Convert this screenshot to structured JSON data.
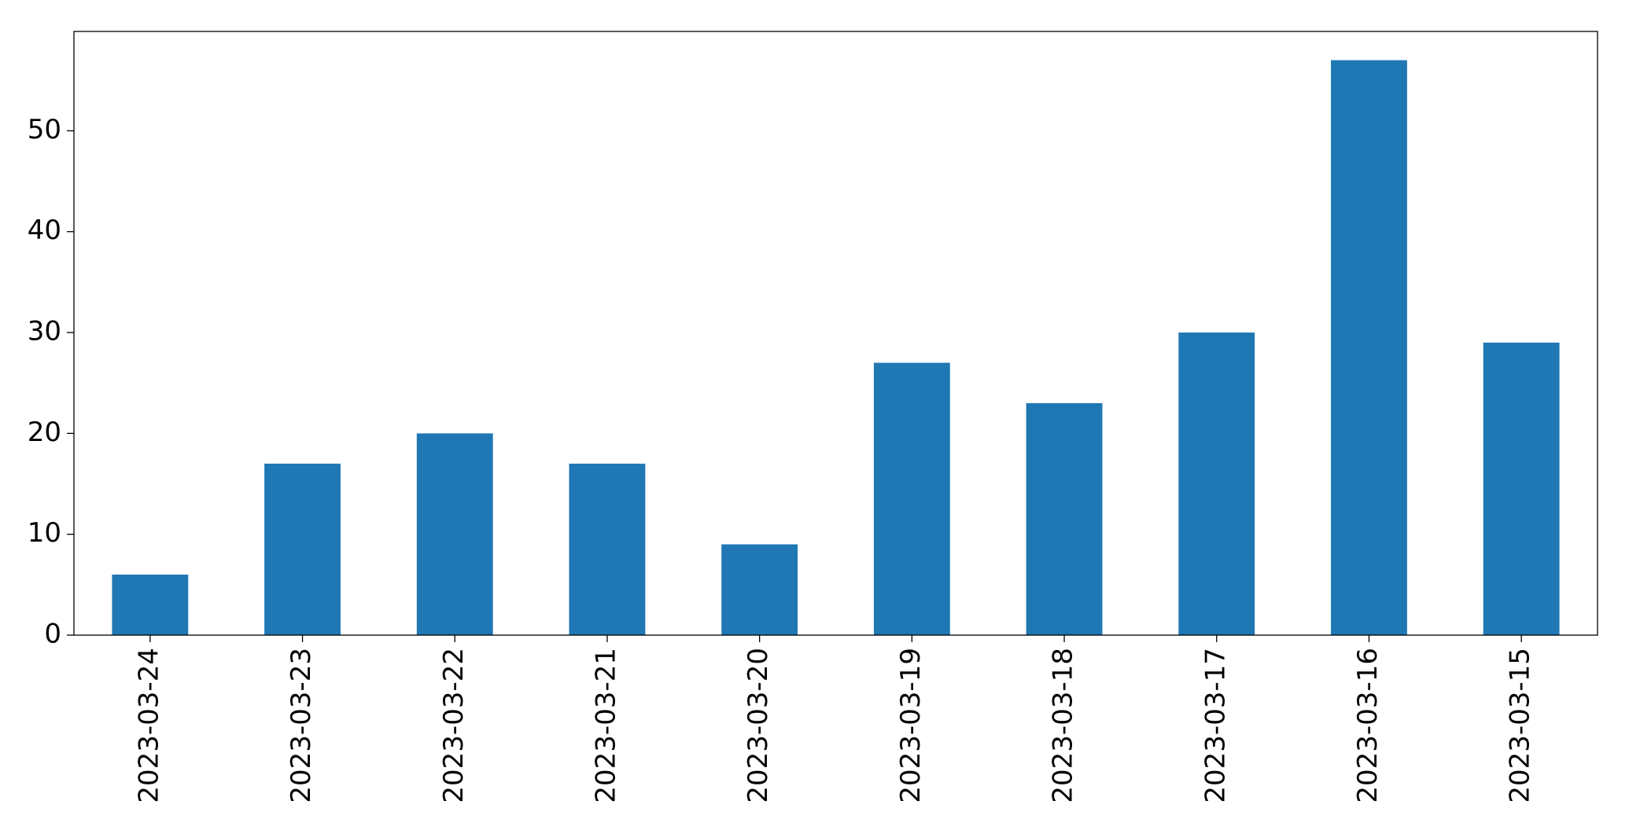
{
  "chart_data": {
    "type": "bar",
    "categories": [
      "2023-03-24",
      "2023-03-23",
      "2023-03-22",
      "2023-03-21",
      "2023-03-20",
      "2023-03-19",
      "2023-03-18",
      "2023-03-17",
      "2023-03-16",
      "2023-03-15"
    ],
    "values": [
      6,
      17,
      20,
      17,
      9,
      27,
      23,
      30,
      57,
      29
    ],
    "color": "#1f77b4",
    "ylim": [
      0,
      59.85
    ],
    "yticks": [
      0,
      10,
      20,
      30,
      40,
      50
    ],
    "grid": false
  }
}
